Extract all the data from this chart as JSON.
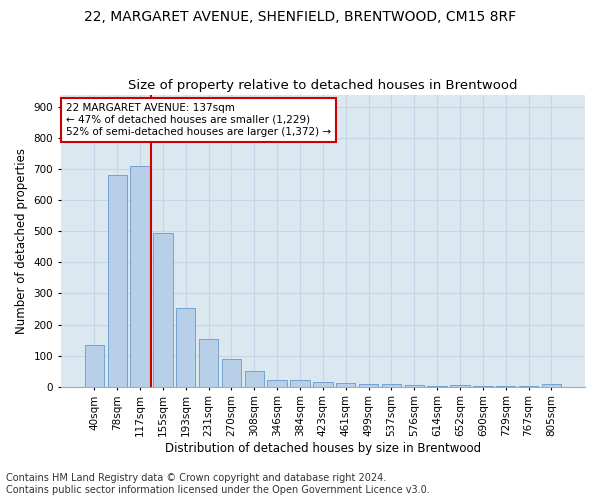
{
  "title_line1": "22, MARGARET AVENUE, SHENFIELD, BRENTWOOD, CM15 8RF",
  "title_line2": "Size of property relative to detached houses in Brentwood",
  "xlabel": "Distribution of detached houses by size in Brentwood",
  "ylabel": "Number of detached properties",
  "footer_line1": "Contains HM Land Registry data © Crown copyright and database right 2024.",
  "footer_line2": "Contains public sector information licensed under the Open Government Licence v3.0.",
  "bar_labels": [
    "40sqm",
    "78sqm",
    "117sqm",
    "155sqm",
    "193sqm",
    "231sqm",
    "270sqm",
    "308sqm",
    "346sqm",
    "384sqm",
    "423sqm",
    "461sqm",
    "499sqm",
    "537sqm",
    "576sqm",
    "614sqm",
    "652sqm",
    "690sqm",
    "729sqm",
    "767sqm",
    "805sqm"
  ],
  "bar_values": [
    135,
    680,
    710,
    493,
    253,
    153,
    88,
    50,
    22,
    20,
    16,
    12,
    10,
    8,
    6,
    1,
    4,
    1,
    1,
    1,
    9
  ],
  "bar_color": "#b8cfe8",
  "bar_edgecolor": "#6699cc",
  "bar_width": 0.85,
  "vline_x": 2.5,
  "vline_color": "#cc0000",
  "annotation_line1": "22 MARGARET AVENUE: 137sqm",
  "annotation_line2": "← 47% of detached houses are smaller (1,229)",
  "annotation_line3": "52% of semi-detached houses are larger (1,372) →",
  "annotation_box_edgecolor": "#cc0000",
  "annotation_fontsize": 7.5,
  "ylim": [
    0,
    940
  ],
  "yticks": [
    0,
    100,
    200,
    300,
    400,
    500,
    600,
    700,
    800,
    900
  ],
  "grid_color": "#c8d4e8",
  "bg_color": "#dce8f0",
  "title_fontsize1": 10,
  "title_fontsize2": 9.5,
  "xlabel_fontsize": 8.5,
  "ylabel_fontsize": 8.5,
  "footer_fontsize": 7.0,
  "tick_fontsize": 7.5
}
